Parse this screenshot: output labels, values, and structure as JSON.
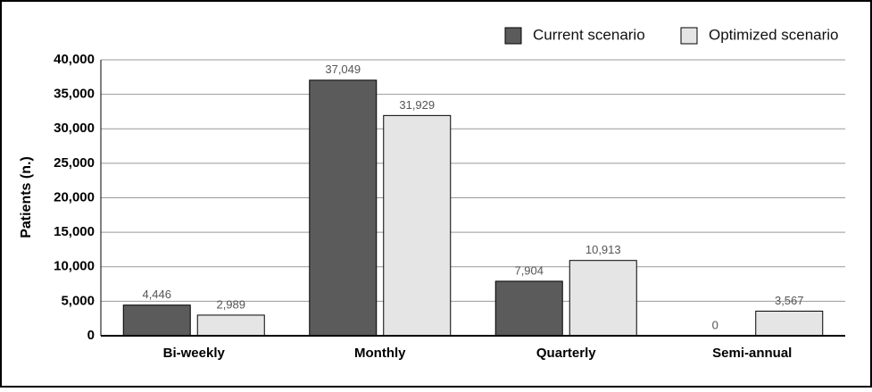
{
  "chart_data": {
    "type": "bar",
    "y_label": "Patients (n.)",
    "categories": [
      "Bi-weekly",
      "Monthly",
      "Quarterly",
      "Semi-annual"
    ],
    "series": [
      {
        "name": "Current scenario",
        "color": "#5b5b5b",
        "values": [
          4446,
          37049,
          7904,
          0
        ],
        "value_labels": [
          "4,446",
          "37,049",
          "7,904",
          "0"
        ]
      },
      {
        "name": "Optimized scenario",
        "color": "#e5e5e5",
        "values": [
          2989,
          31929,
          10913,
          3567
        ],
        "value_labels": [
          "2,989",
          "31,929",
          "10,913",
          "3,567"
        ]
      }
    ],
    "ylim": [
      0,
      40000
    ],
    "yticks": [
      0,
      {
        "value": 5000,
        "label": "5,000"
      },
      {
        "value": 10000,
        "label": "10,000"
      },
      {
        "value": 15000,
        "label": "15,000"
      },
      {
        "value": 20000,
        "label": "20,000"
      },
      {
        "value": 25000,
        "label": "25,000"
      },
      {
        "value": 30000,
        "label": "30,000"
      },
      {
        "value": 35000,
        "label": "35,000"
      },
      {
        "value": 40000,
        "label": "40,000"
      }
    ],
    "grid": true,
    "legend": "top-right"
  }
}
